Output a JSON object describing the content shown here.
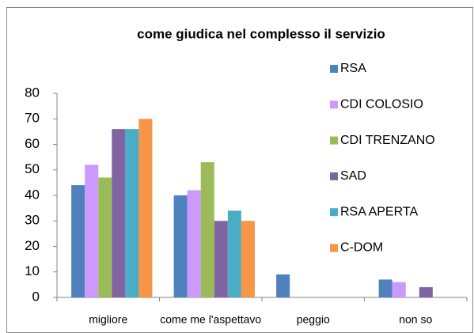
{
  "chart_data": {
    "type": "bar",
    "title": "come giudica nel complesso il servizio",
    "categories": [
      "migliore",
      "come me l'aspettavo",
      "peggio",
      "non so"
    ],
    "series": [
      {
        "name": "RSA",
        "color": "#4f81bd",
        "values": [
          44,
          40,
          9,
          7
        ]
      },
      {
        "name": "CDI COLOSIO",
        "color": "#cc99ff",
        "values": [
          52,
          42,
          0,
          6
        ]
      },
      {
        "name": "CDI TRENZANO",
        "color": "#9bbb59",
        "values": [
          47,
          53,
          0,
          0
        ]
      },
      {
        "name": "SAD",
        "color": "#8064a2",
        "values": [
          66,
          30,
          0,
          4
        ]
      },
      {
        "name": "RSA APERTA",
        "color": "#4bacc6",
        "values": [
          66,
          34,
          0,
          0
        ]
      },
      {
        "name": "C-DOM",
        "color": "#f79646",
        "values": [
          70,
          30,
          0,
          0
        ]
      }
    ],
    "ylim": [
      0,
      80
    ],
    "yticks": [
      0,
      10,
      20,
      30,
      40,
      50,
      60,
      70,
      80
    ],
    "grid": false,
    "legend": "right"
  }
}
